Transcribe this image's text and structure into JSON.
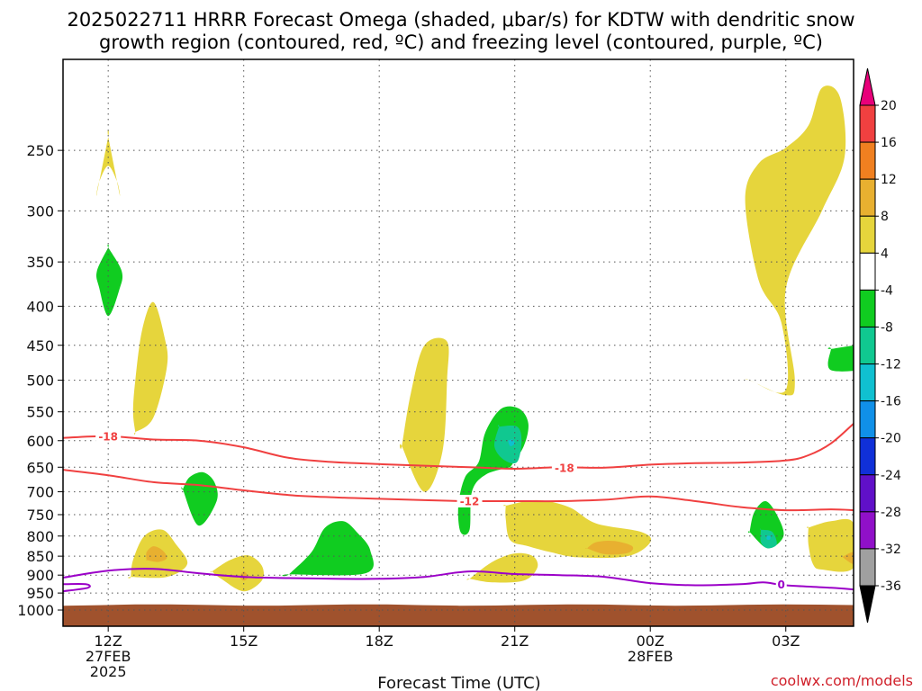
{
  "title_line1": "2025022711 HRRR Forecast Omega (shaded, μbar/s) for KDTW with dendritic snow",
  "title_line2": "growth region (contoured, red, ºC) and freezing level (contoured, purple, ºC)",
  "xlabel": "Forecast Time (UTC)",
  "credit": "coolwx.com/models",
  "colors": {
    "frame": "#000000",
    "grid": "#555555",
    "ground": "#a0522d",
    "dgz_contour": "#f04040",
    "freezing_contour": "#9b00c8"
  },
  "chart_data": {
    "type": "contour",
    "y_axis": {
      "scale": "log-pressure",
      "reversed": true,
      "range_hpa": [
        1050,
        190
      ],
      "ticks": [
        250,
        300,
        350,
        400,
        450,
        500,
        550,
        600,
        650,
        700,
        750,
        800,
        850,
        900,
        950,
        1000
      ]
    },
    "x_axis": {
      "range_hours": [
        -1,
        16.5
      ],
      "ticks": [
        {
          "hour": 0,
          "lines": [
            "12Z",
            "27FEB",
            "2025"
          ]
        },
        {
          "hour": 3,
          "lines": [
            "15Z"
          ]
        },
        {
          "hour": 6,
          "lines": [
            "18Z"
          ]
        },
        {
          "hour": 9,
          "lines": [
            "21Z"
          ]
        },
        {
          "hour": 12,
          "lines": [
            "00Z",
            "28FEB"
          ]
        },
        {
          "hour": 15,
          "lines": [
            "03Z"
          ]
        }
      ]
    },
    "grid": true,
    "colorbar": {
      "units": "μbar/s",
      "labels": [
        "20",
        "16",
        "12",
        "8",
        "4",
        "-4",
        "-8",
        "-12",
        "-16",
        "-20",
        "-24",
        "-28",
        "-32",
        "-36"
      ],
      "colors": [
        "#e8007a",
        "#f04040",
        "#f08020",
        "#e8b030",
        "#e6d53c",
        "#ffffff",
        "#10cc20",
        "#10c890",
        "#10c0d0",
        "#1090e8",
        "#1030d8",
        "#6010c8",
        "#9010c8",
        "#a0a0a0",
        "#000000"
      ]
    },
    "omega_regions": [
      {
        "level": 4,
        "color": "#e6d53c",
        "points": [
          [
            0,
            240
          ],
          [
            0.25,
            285
          ],
          [
            0.2,
            275
          ],
          [
            0,
            262
          ],
          [
            -0.2,
            275
          ],
          [
            -0.25,
            285
          ],
          [
            0,
            240
          ]
        ]
      },
      {
        "level": 4,
        "color": "#e6d53c",
        "points": [
          [
            0.6,
            585
          ],
          [
            1.0,
            560
          ],
          [
            1.3,
            480
          ],
          [
            1.25,
            440
          ],
          [
            1.0,
            395
          ],
          [
            0.75,
            430
          ],
          [
            0.6,
            500
          ],
          [
            0.55,
            550
          ],
          [
            0.6,
            585
          ]
        ]
      },
      {
        "level": 4,
        "color": "#e6d53c",
        "points": [
          [
            0.5,
            905
          ],
          [
            1.3,
            905
          ],
          [
            1.75,
            870
          ],
          [
            1.5,
            820
          ],
          [
            1.2,
            785
          ],
          [
            0.8,
            800
          ],
          [
            0.55,
            860
          ],
          [
            0.5,
            905
          ]
        ]
      },
      {
        "level": 8,
        "color": "#e8b030",
        "points": [
          [
            0.85,
            860
          ],
          [
            1.1,
            865
          ],
          [
            1.3,
            855
          ],
          [
            1.2,
            835
          ],
          [
            1.0,
            825
          ],
          [
            0.85,
            840
          ],
          [
            0.85,
            860
          ]
        ]
      },
      {
        "level": 4,
        "color": "#e6d53c",
        "points": [
          [
            2.3,
            890
          ],
          [
            2.5,
            910
          ],
          [
            3.0,
            945
          ],
          [
            3.4,
            915
          ],
          [
            3.4,
            875
          ],
          [
            3.1,
            848
          ],
          [
            2.7,
            860
          ],
          [
            2.3,
            890
          ]
        ]
      },
      {
        "level": 8,
        "color": "#e8b030",
        "points": [
          [
            2.9,
            905
          ],
          [
            3.0,
            890
          ],
          [
            3.1,
            905
          ],
          [
            3.0,
            915
          ],
          [
            2.9,
            905
          ]
        ]
      },
      {
        "level": 4,
        "color": "#e6d53c",
        "points": [
          [
            6.5,
            610
          ],
          [
            7.0,
            700
          ],
          [
            7.4,
            620
          ],
          [
            7.5,
            500
          ],
          [
            7.5,
            445
          ],
          [
            7.0,
            450
          ],
          [
            6.7,
            520
          ],
          [
            6.5,
            610
          ]
        ]
      },
      {
        "level": 4,
        "color": "#e6d53c",
        "points": [
          [
            8.0,
            910
          ],
          [
            8.5,
            920
          ],
          [
            9.2,
            915
          ],
          [
            9.5,
            880
          ],
          [
            9.4,
            850
          ],
          [
            9.0,
            843
          ],
          [
            8.5,
            865
          ],
          [
            8.0,
            910
          ]
        ]
      },
      {
        "level": 4,
        "color": "#e6d53c",
        "points": [
          [
            8.8,
            730
          ],
          [
            9.5,
            718
          ],
          [
            10.2,
            733
          ],
          [
            10.8,
            770
          ],
          [
            11.8,
            790
          ],
          [
            12.0,
            815
          ],
          [
            11.5,
            850
          ],
          [
            10.4,
            853
          ],
          [
            9.8,
            840
          ],
          [
            9.3,
            825
          ],
          [
            8.9,
            810
          ],
          [
            8.8,
            760
          ],
          [
            8.8,
            730
          ]
        ]
      },
      {
        "level": 8,
        "color": "#e8b030",
        "points": [
          [
            10.6,
            830
          ],
          [
            11.0,
            845
          ],
          [
            11.5,
            842
          ],
          [
            11.6,
            825
          ],
          [
            11.2,
            812
          ],
          [
            10.8,
            815
          ],
          [
            10.6,
            830
          ]
        ]
      },
      {
        "level": 4,
        "color": "#e6d53c",
        "points": [
          [
            14.2,
            500
          ],
          [
            15.0,
            515
          ],
          [
            14.9,
            420
          ],
          [
            14.4,
            370
          ],
          [
            14.1,
            290
          ],
          [
            14.4,
            260
          ],
          [
            15.0,
            248
          ],
          [
            15.5,
            232
          ],
          [
            15.8,
            207
          ],
          [
            16.2,
            213
          ],
          [
            16.3,
            255
          ],
          [
            15.8,
            300
          ],
          [
            15.0,
            380
          ],
          [
            15.2,
            500
          ],
          [
            15.0,
            523
          ],
          [
            14.2,
            500
          ]
        ]
      },
      {
        "level": 4,
        "color": "#e6d53c",
        "points": [
          [
            15.5,
            780
          ],
          [
            16.0,
            765
          ],
          [
            16.5,
            770
          ],
          [
            16.5,
            880
          ],
          [
            15.8,
            885
          ],
          [
            15.6,
            870
          ],
          [
            15.5,
            820
          ],
          [
            15.5,
            780
          ]
        ]
      },
      {
        "level": 8,
        "color": "#e8b030",
        "points": [
          [
            16.25,
            852
          ],
          [
            16.5,
            870
          ],
          [
            16.5,
            840
          ],
          [
            16.25,
            852
          ]
        ]
      },
      {
        "level": -4,
        "color": "#10cc20",
        "points": [
          [
            0,
            335
          ],
          [
            0.3,
            360
          ],
          [
            0.25,
            380
          ],
          [
            0,
            412
          ],
          [
            -0.2,
            378
          ],
          [
            -0.25,
            360
          ],
          [
            0,
            335
          ]
        ]
      },
      {
        "level": -4,
        "color": "#10cc20",
        "points": [
          [
            1.65,
            695
          ],
          [
            2.0,
            775
          ],
          [
            2.4,
            720
          ],
          [
            2.35,
            680
          ],
          [
            2.1,
            660
          ],
          [
            1.8,
            670
          ],
          [
            1.65,
            695
          ]
        ]
      },
      {
        "level": -4,
        "color": "#10cc20",
        "points": [
          [
            4.0,
            898
          ],
          [
            5.7,
            895
          ],
          [
            5.8,
            835
          ],
          [
            5.5,
            790
          ],
          [
            5.2,
            765
          ],
          [
            4.8,
            780
          ],
          [
            4.5,
            840
          ],
          [
            4.0,
            898
          ]
        ]
      },
      {
        "level": -4,
        "color": "#10cc20",
        "points": [
          [
            8.9,
            650
          ],
          [
            9.2,
            610
          ],
          [
            9.3,
            570
          ],
          [
            9.1,
            545
          ],
          [
            8.7,
            545
          ],
          [
            8.35,
            585
          ],
          [
            8.2,
            640
          ],
          [
            7.9,
            670
          ],
          [
            7.75,
            730
          ],
          [
            7.8,
            790
          ],
          [
            8.0,
            785
          ],
          [
            8.05,
            700
          ],
          [
            8.35,
            665
          ],
          [
            8.9,
            650
          ]
        ]
      },
      {
        "level": -8,
        "color": "#10c890",
        "points": [
          [
            8.65,
            575
          ],
          [
            9.05,
            575
          ],
          [
            9.15,
            600
          ],
          [
            9.05,
            640
          ],
          [
            8.75,
            635
          ],
          [
            8.55,
            610
          ],
          [
            8.65,
            575
          ]
        ]
      },
      {
        "level": -12,
        "color": "#10c0d0",
        "points": [
          [
            8.85,
            600
          ],
          [
            8.95,
            598
          ],
          [
            9.0,
            605
          ],
          [
            8.9,
            610
          ],
          [
            8.85,
            600
          ]
        ]
      },
      {
        "level": -4,
        "color": "#10cc20",
        "points": [
          [
            14.2,
            790
          ],
          [
            14.6,
            830
          ],
          [
            14.95,
            800
          ],
          [
            14.8,
            750
          ],
          [
            14.55,
            720
          ],
          [
            14.3,
            745
          ],
          [
            14.2,
            790
          ]
        ]
      },
      {
        "level": -8,
        "color": "#10c890",
        "points": [
          [
            14.45,
            785
          ],
          [
            14.7,
            790
          ],
          [
            14.8,
            820
          ],
          [
            14.6,
            830
          ],
          [
            14.45,
            815
          ],
          [
            14.45,
            785
          ]
        ]
      },
      {
        "level": -12,
        "color": "#10c0d0",
        "points": [
          [
            14.58,
            800
          ],
          [
            14.65,
            800
          ],
          [
            14.65,
            808
          ],
          [
            14.58,
            808
          ],
          [
            14.58,
            800
          ]
        ]
      },
      {
        "level": -4,
        "color": "#10cc20",
        "points": [
          [
            16.0,
            455
          ],
          [
            16.9,
            450
          ],
          [
            16.9,
            480
          ],
          [
            16.0,
            485
          ],
          [
            16.0,
            455
          ]
        ]
      }
    ],
    "contours": [
      {
        "kind": "dgz",
        "value": -18,
        "label": "-18",
        "points": [
          [
            -1,
            595
          ],
          [
            0,
            592
          ],
          [
            1,
            598
          ],
          [
            2,
            600
          ],
          [
            3,
            612
          ],
          [
            4,
            632
          ],
          [
            5,
            640
          ],
          [
            6,
            644
          ],
          [
            7,
            647
          ],
          [
            8,
            650
          ],
          [
            9,
            653
          ],
          [
            10,
            650
          ],
          [
            11,
            651
          ],
          [
            12,
            645
          ],
          [
            13,
            642
          ],
          [
            14,
            641
          ],
          [
            15,
            637
          ],
          [
            15.5,
            627
          ],
          [
            16,
            605
          ],
          [
            16.5,
            570
          ]
        ]
      },
      {
        "kind": "dgz",
        "value": -12,
        "label": "-12",
        "points": [
          [
            -1,
            655
          ],
          [
            0,
            666
          ],
          [
            1,
            680
          ],
          [
            2,
            686
          ],
          [
            3,
            697
          ],
          [
            4,
            707
          ],
          [
            5,
            712
          ],
          [
            6,
            715
          ],
          [
            7,
            718
          ],
          [
            8,
            720
          ],
          [
            9,
            720
          ],
          [
            10,
            720
          ],
          [
            11,
            717
          ],
          [
            12,
            710
          ],
          [
            13,
            720
          ],
          [
            14,
            733
          ],
          [
            15,
            740
          ],
          [
            16,
            738
          ],
          [
            16.5,
            740
          ]
        ]
      },
      {
        "kind": "freezing",
        "value": 0,
        "label": "0",
        "points": [
          [
            -1,
            907
          ],
          [
            0,
            888
          ],
          [
            1,
            883
          ],
          [
            2,
            895
          ],
          [
            3,
            905
          ],
          [
            4,
            908
          ],
          [
            5,
            910
          ],
          [
            6,
            910
          ],
          [
            7,
            905
          ],
          [
            8,
            890
          ],
          [
            9,
            897
          ],
          [
            10,
            900
          ],
          [
            11,
            905
          ],
          [
            12,
            922
          ],
          [
            13,
            928
          ],
          [
            14,
            925
          ],
          [
            14.5,
            920
          ],
          [
            15,
            928
          ],
          [
            16,
            935
          ],
          [
            16.5,
            940
          ]
        ]
      },
      {
        "kind": "freezing",
        "value": 0,
        "label": "",
        "points": [
          [
            -1,
            925
          ],
          [
            -0.5,
            925
          ],
          [
            -0.45,
            935
          ],
          [
            -1,
            945
          ]
        ]
      }
    ],
    "contour_labels": [
      {
        "text": "-18",
        "hour": 0.0,
        "hpa": 592,
        "color": "#f04040"
      },
      {
        "text": "-18",
        "hour": 10.1,
        "hpa": 651,
        "color": "#f04040"
      },
      {
        "text": "-12",
        "hour": 8.0,
        "hpa": 720,
        "color": "#f04040"
      },
      {
        "text": "0",
        "hour": 14.9,
        "hpa": 925,
        "color": "#9b00c8"
      }
    ],
    "ground": {
      "top_hpa": 985,
      "bottom_hpa": 1050
    }
  }
}
